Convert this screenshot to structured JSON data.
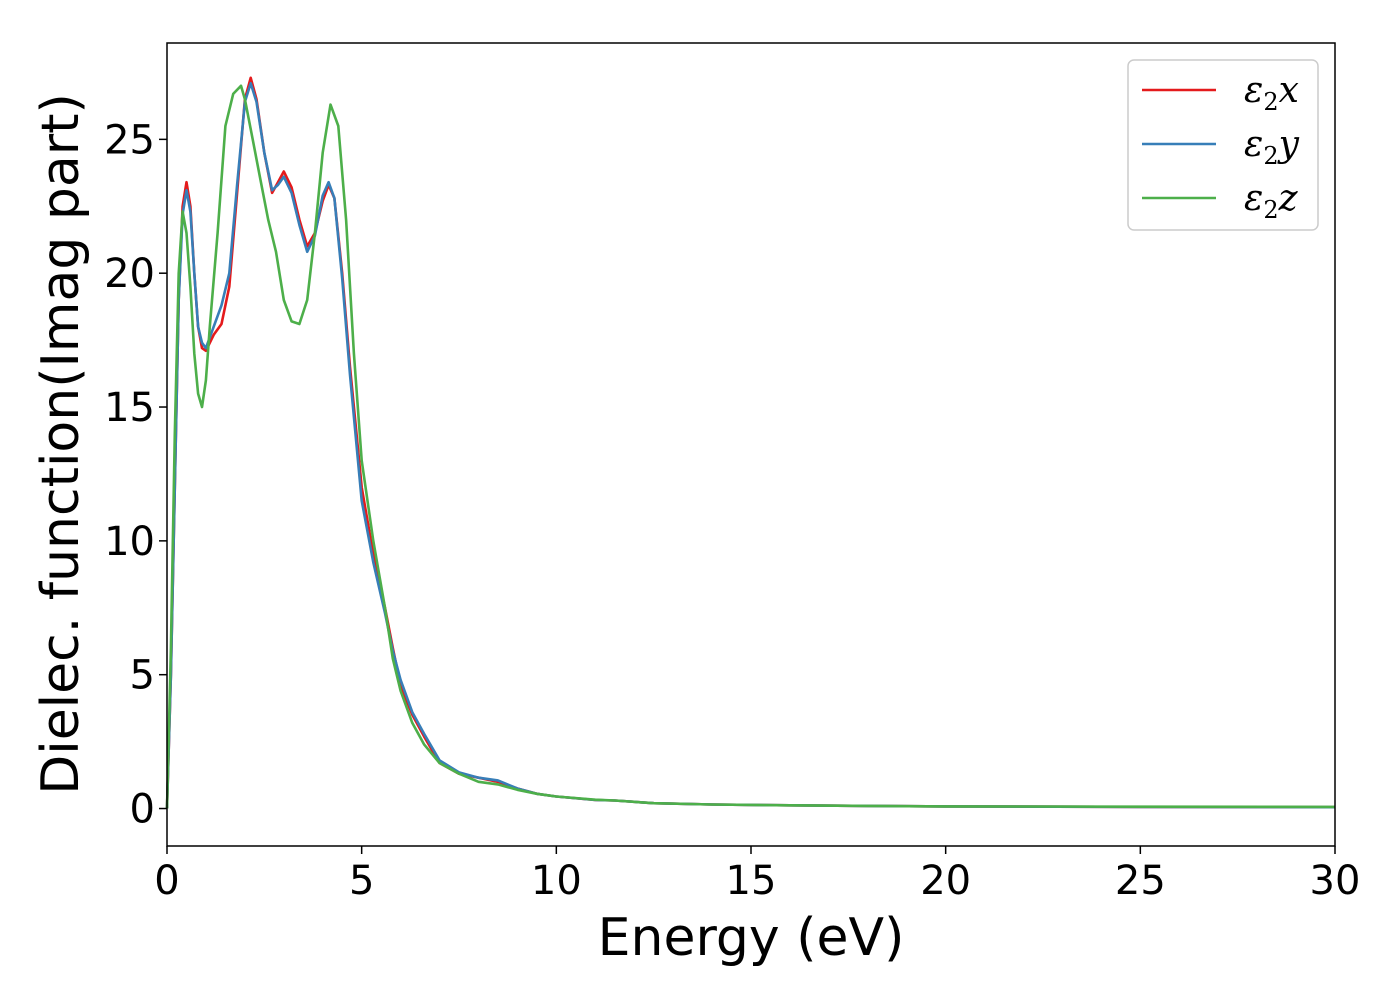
{
  "chart_data": {
    "type": "line",
    "title": "",
    "xlabel": "Energy (eV)",
    "ylabel": "Dielec. function(Imag part)",
    "xlim": [
      0,
      30
    ],
    "ylim": [
      -1.4,
      28.6
    ],
    "xticks": [
      0,
      5,
      10,
      15,
      20,
      25,
      30
    ],
    "yticks": [
      0,
      5,
      10,
      15,
      20,
      25
    ],
    "xtick_labels": [
      "0",
      "5",
      "10",
      "15",
      "20",
      "25",
      "30"
    ],
    "ytick_labels": [
      "0",
      "5",
      "10",
      "15",
      "20",
      "25"
    ],
    "grid": false,
    "legend_position": "top-right",
    "series": [
      {
        "legend_base": "ε",
        "legend_sub": "2",
        "legend_suffix": "x",
        "color": "#e41a1c",
        "points": [
          [
            0,
            0
          ],
          [
            0.1,
            5
          ],
          [
            0.2,
            12
          ],
          [
            0.3,
            19
          ],
          [
            0.4,
            22.5
          ],
          [
            0.5,
            23.4
          ],
          [
            0.6,
            22.5
          ],
          [
            0.7,
            20
          ],
          [
            0.8,
            18
          ],
          [
            0.9,
            17.2
          ],
          [
            1.0,
            17.1
          ],
          [
            1.1,
            17.4
          ],
          [
            1.2,
            17.7
          ],
          [
            1.4,
            18.1
          ],
          [
            1.6,
            19.5
          ],
          [
            1.8,
            23
          ],
          [
            2.0,
            26.5
          ],
          [
            2.15,
            27.3
          ],
          [
            2.3,
            26.5
          ],
          [
            2.5,
            24.5
          ],
          [
            2.7,
            23
          ],
          [
            2.85,
            23.4
          ],
          [
            3.0,
            23.8
          ],
          [
            3.2,
            23.2
          ],
          [
            3.4,
            22
          ],
          [
            3.6,
            21
          ],
          [
            3.8,
            21.5
          ],
          [
            4.0,
            22.7
          ],
          [
            4.15,
            23.3
          ],
          [
            4.3,
            22.8
          ],
          [
            4.5,
            20
          ],
          [
            4.7,
            16.5
          ],
          [
            5.0,
            12
          ],
          [
            5.3,
            9.5
          ],
          [
            5.6,
            7.5
          ],
          [
            5.8,
            6
          ],
          [
            6.0,
            4.6
          ],
          [
            6.3,
            3.5
          ],
          [
            6.6,
            2.7
          ],
          [
            7.0,
            1.7
          ],
          [
            7.5,
            1.3
          ],
          [
            8.0,
            1.15
          ],
          [
            8.5,
            1.0
          ],
          [
            9.0,
            0.75
          ],
          [
            9.5,
            0.55
          ],
          [
            10.0,
            0.45
          ],
          [
            11.0,
            0.32
          ],
          [
            11.5,
            0.3
          ],
          [
            12.5,
            0.2
          ],
          [
            14,
            0.15
          ],
          [
            16,
            0.12
          ],
          [
            18,
            0.1
          ],
          [
            20,
            0.08
          ],
          [
            25,
            0.06
          ],
          [
            30,
            0.05
          ]
        ]
      },
      {
        "legend_base": "ε",
        "legend_sub": "2",
        "legend_suffix": "y",
        "color": "#377eb8",
        "points": [
          [
            0,
            0
          ],
          [
            0.1,
            5
          ],
          [
            0.2,
            12
          ],
          [
            0.3,
            19
          ],
          [
            0.4,
            22.2
          ],
          [
            0.5,
            23.1
          ],
          [
            0.6,
            22.3
          ],
          [
            0.7,
            20
          ],
          [
            0.8,
            18
          ],
          [
            0.9,
            17.4
          ],
          [
            1.0,
            17.2
          ],
          [
            1.1,
            17.6
          ],
          [
            1.2,
            18.0
          ],
          [
            1.4,
            18.8
          ],
          [
            1.6,
            20
          ],
          [
            1.8,
            23.3
          ],
          [
            2.0,
            26.4
          ],
          [
            2.15,
            27.1
          ],
          [
            2.3,
            26.4
          ],
          [
            2.5,
            24.5
          ],
          [
            2.7,
            23.1
          ],
          [
            2.85,
            23.3
          ],
          [
            3.0,
            23.6
          ],
          [
            3.2,
            23
          ],
          [
            3.4,
            21.8
          ],
          [
            3.6,
            20.8
          ],
          [
            3.8,
            21.4
          ],
          [
            4.0,
            22.9
          ],
          [
            4.15,
            23.4
          ],
          [
            4.3,
            22.8
          ],
          [
            4.5,
            19.8
          ],
          [
            4.7,
            16.2
          ],
          [
            5.0,
            11.5
          ],
          [
            5.3,
            9.2
          ],
          [
            5.6,
            7.3
          ],
          [
            5.8,
            5.9
          ],
          [
            6.0,
            4.8
          ],
          [
            6.3,
            3.6
          ],
          [
            6.6,
            2.8
          ],
          [
            7.0,
            1.8
          ],
          [
            7.5,
            1.35
          ],
          [
            8.0,
            1.15
          ],
          [
            8.5,
            1.05
          ],
          [
            9.0,
            0.75
          ],
          [
            9.5,
            0.55
          ],
          [
            10.0,
            0.45
          ],
          [
            11.0,
            0.32
          ],
          [
            11.5,
            0.3
          ],
          [
            12.5,
            0.2
          ],
          [
            14,
            0.15
          ],
          [
            16,
            0.12
          ],
          [
            18,
            0.1
          ],
          [
            20,
            0.08
          ],
          [
            25,
            0.06
          ],
          [
            30,
            0.05
          ]
        ]
      },
      {
        "legend_base": "ε",
        "legend_sub": "2",
        "legend_suffix": "z",
        "color": "#4daf4a",
        "points": [
          [
            0,
            0
          ],
          [
            0.1,
            6
          ],
          [
            0.2,
            14
          ],
          [
            0.3,
            20
          ],
          [
            0.4,
            22.3
          ],
          [
            0.5,
            21.5
          ],
          [
            0.6,
            19.5
          ],
          [
            0.7,
            17
          ],
          [
            0.8,
            15.5
          ],
          [
            0.9,
            15
          ],
          [
            1.0,
            16
          ],
          [
            1.1,
            18
          ],
          [
            1.3,
            21.5
          ],
          [
            1.5,
            25.5
          ],
          [
            1.7,
            26.7
          ],
          [
            1.9,
            27
          ],
          [
            2.0,
            26.5
          ],
          [
            2.2,
            25
          ],
          [
            2.4,
            23.5
          ],
          [
            2.6,
            22
          ],
          [
            2.8,
            20.8
          ],
          [
            3.0,
            19
          ],
          [
            3.2,
            18.2
          ],
          [
            3.4,
            18.1
          ],
          [
            3.6,
            19
          ],
          [
            3.8,
            21.5
          ],
          [
            4.0,
            24.5
          ],
          [
            4.2,
            26.3
          ],
          [
            4.4,
            25.5
          ],
          [
            4.6,
            22
          ],
          [
            4.8,
            17
          ],
          [
            5.0,
            13
          ],
          [
            5.3,
            10
          ],
          [
            5.6,
            7.5
          ],
          [
            5.8,
            5.6
          ],
          [
            6.0,
            4.4
          ],
          [
            6.3,
            3.2
          ],
          [
            6.6,
            2.4
          ],
          [
            7.0,
            1.7
          ],
          [
            7.5,
            1.3
          ],
          [
            8.0,
            1.0
          ],
          [
            8.5,
            0.9
          ],
          [
            9.0,
            0.7
          ],
          [
            9.5,
            0.55
          ],
          [
            10.0,
            0.45
          ],
          [
            11.0,
            0.33
          ],
          [
            11.5,
            0.3
          ],
          [
            12.5,
            0.2
          ],
          [
            14,
            0.15
          ],
          [
            16,
            0.12
          ],
          [
            18,
            0.1
          ],
          [
            20,
            0.08
          ],
          [
            25,
            0.07
          ],
          [
            30,
            0.06
          ]
        ]
      }
    ]
  }
}
